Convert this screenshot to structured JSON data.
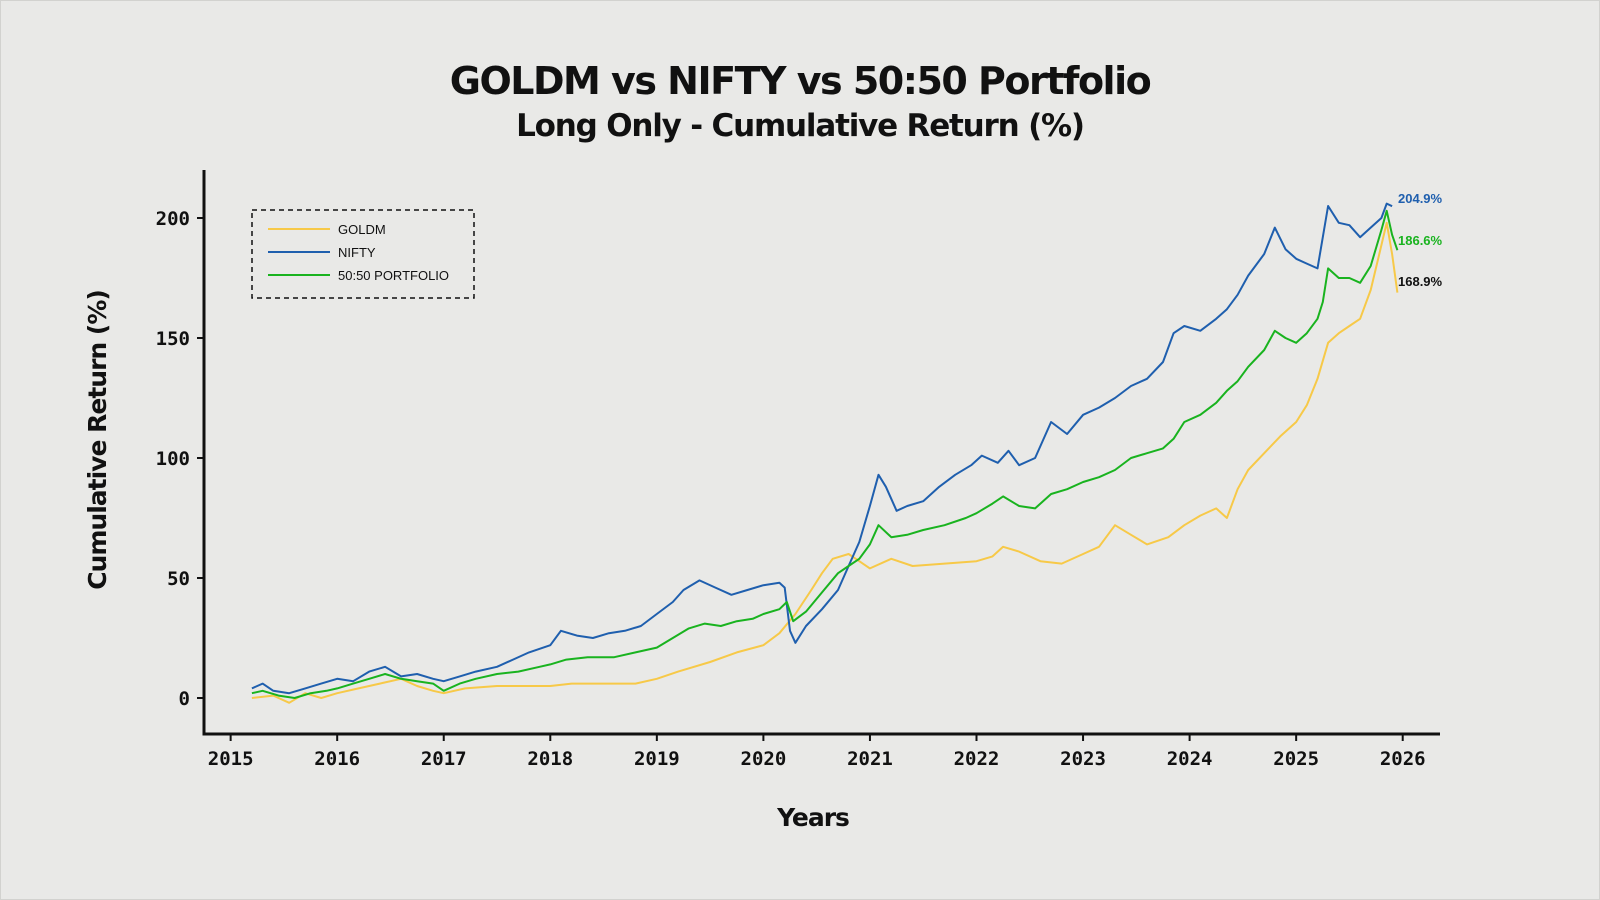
{
  "chart_data": {
    "type": "line",
    "title": "GOLDM vs NIFTY vs 50:50 Portfolio",
    "subtitle": "Long Only - Cumulative Return (%)",
    "xlabel": "Years",
    "ylabel": "Cumulative Return (%)",
    "xlim": [
      2014.75,
      2026.35
    ],
    "ylim": [
      -15,
      220
    ],
    "xticks": [
      2015,
      2016,
      2017,
      2018,
      2019,
      2020,
      2021,
      2022,
      2023,
      2024,
      2025,
      2026
    ],
    "xtick_labels": [
      "2015",
      "2016",
      "2017",
      "2018",
      "2019",
      "2020",
      "2021",
      "2022",
      "2023",
      "2024",
      "2025",
      "2026"
    ],
    "yticks": [
      0,
      50,
      100,
      150,
      200
    ],
    "ytick_labels": [
      "0",
      "50",
      "100",
      "150",
      "200"
    ],
    "legend_position": "top-left",
    "grid": false,
    "series": [
      {
        "name": "GOLDM",
        "color": "#f7c948",
        "end_label": "168.9%",
        "end_label_color": "#111111",
        "points": [
          [
            2015.2,
            0
          ],
          [
            2015.4,
            1
          ],
          [
            2015.55,
            -2
          ],
          [
            2015.7,
            2
          ],
          [
            2015.85,
            0
          ],
          [
            2016.0,
            2
          ],
          [
            2016.2,
            4
          ],
          [
            2016.4,
            6
          ],
          [
            2016.6,
            8
          ],
          [
            2016.75,
            5
          ],
          [
            2016.9,
            3
          ],
          [
            2017.0,
            2
          ],
          [
            2017.2,
            4
          ],
          [
            2017.5,
            5
          ],
          [
            2017.8,
            5
          ],
          [
            2018.0,
            5
          ],
          [
            2018.2,
            6
          ],
          [
            2018.5,
            6
          ],
          [
            2018.8,
            6
          ],
          [
            2019.0,
            8
          ],
          [
            2019.2,
            11
          ],
          [
            2019.5,
            15
          ],
          [
            2019.75,
            19
          ],
          [
            2020.0,
            22
          ],
          [
            2020.15,
            27
          ],
          [
            2020.3,
            35
          ],
          [
            2020.45,
            45
          ],
          [
            2020.55,
            52
          ],
          [
            2020.65,
            58
          ],
          [
            2020.8,
            60
          ],
          [
            2020.9,
            57
          ],
          [
            2021.0,
            54
          ],
          [
            2021.2,
            58
          ],
          [
            2021.4,
            55
          ],
          [
            2021.7,
            56
          ],
          [
            2022.0,
            57
          ],
          [
            2022.15,
            59
          ],
          [
            2022.25,
            63
          ],
          [
            2022.4,
            61
          ],
          [
            2022.6,
            57
          ],
          [
            2022.8,
            56
          ],
          [
            2023.0,
            60
          ],
          [
            2023.15,
            63
          ],
          [
            2023.3,
            72
          ],
          [
            2023.45,
            68
          ],
          [
            2023.6,
            64
          ],
          [
            2023.8,
            67
          ],
          [
            2023.95,
            72
          ],
          [
            2024.1,
            76
          ],
          [
            2024.25,
            79
          ],
          [
            2024.35,
            75
          ],
          [
            2024.45,
            87
          ],
          [
            2024.55,
            95
          ],
          [
            2024.7,
            102
          ],
          [
            2024.85,
            109
          ],
          [
            2025.0,
            115
          ],
          [
            2025.1,
            122
          ],
          [
            2025.2,
            133
          ],
          [
            2025.3,
            148
          ],
          [
            2025.4,
            152
          ],
          [
            2025.5,
            155
          ],
          [
            2025.6,
            158
          ],
          [
            2025.7,
            170
          ],
          [
            2025.78,
            185
          ],
          [
            2025.85,
            198
          ],
          [
            2025.9,
            185
          ],
          [
            2025.95,
            168.9
          ]
        ]
      },
      {
        "name": "NIFTY",
        "color": "#1f5fae",
        "end_label": "204.9%",
        "end_label_color": "#1f5fae",
        "points": [
          [
            2015.2,
            4
          ],
          [
            2015.3,
            6
          ],
          [
            2015.4,
            3
          ],
          [
            2015.55,
            2
          ],
          [
            2015.7,
            4
          ],
          [
            2015.85,
            6
          ],
          [
            2016.0,
            8
          ],
          [
            2016.15,
            7
          ],
          [
            2016.3,
            11
          ],
          [
            2016.45,
            13
          ],
          [
            2016.6,
            9
          ],
          [
            2016.75,
            10
          ],
          [
            2016.9,
            8
          ],
          [
            2017.0,
            7
          ],
          [
            2017.15,
            9
          ],
          [
            2017.3,
            11
          ],
          [
            2017.5,
            13
          ],
          [
            2017.65,
            16
          ],
          [
            2017.8,
            19
          ],
          [
            2018.0,
            22
          ],
          [
            2018.1,
            28
          ],
          [
            2018.25,
            26
          ],
          [
            2018.4,
            25
          ],
          [
            2018.55,
            27
          ],
          [
            2018.7,
            28
          ],
          [
            2018.85,
            30
          ],
          [
            2019.0,
            35
          ],
          [
            2019.15,
            40
          ],
          [
            2019.25,
            45
          ],
          [
            2019.4,
            49
          ],
          [
            2019.55,
            46
          ],
          [
            2019.7,
            43
          ],
          [
            2019.85,
            45
          ],
          [
            2020.0,
            47
          ],
          [
            2020.15,
            48
          ],
          [
            2020.2,
            46
          ],
          [
            2020.25,
            28
          ],
          [
            2020.3,
            23
          ],
          [
            2020.4,
            30
          ],
          [
            2020.55,
            37
          ],
          [
            2020.7,
            45
          ],
          [
            2020.8,
            55
          ],
          [
            2020.9,
            65
          ],
          [
            2021.0,
            80
          ],
          [
            2021.08,
            93
          ],
          [
            2021.15,
            88
          ],
          [
            2021.25,
            78
          ],
          [
            2021.35,
            80
          ],
          [
            2021.5,
            82
          ],
          [
            2021.65,
            88
          ],
          [
            2021.8,
            93
          ],
          [
            2021.95,
            97
          ],
          [
            2022.05,
            101
          ],
          [
            2022.2,
            98
          ],
          [
            2022.3,
            103
          ],
          [
            2022.4,
            97
          ],
          [
            2022.55,
            100
          ],
          [
            2022.7,
            115
          ],
          [
            2022.85,
            110
          ],
          [
            2023.0,
            118
          ],
          [
            2023.15,
            121
          ],
          [
            2023.3,
            125
          ],
          [
            2023.45,
            130
          ],
          [
            2023.6,
            133
          ],
          [
            2023.75,
            140
          ],
          [
            2023.85,
            152
          ],
          [
            2023.95,
            155
          ],
          [
            2024.1,
            153
          ],
          [
            2024.25,
            158
          ],
          [
            2024.35,
            162
          ],
          [
            2024.45,
            168
          ],
          [
            2024.55,
            176
          ],
          [
            2024.7,
            185
          ],
          [
            2024.8,
            196
          ],
          [
            2024.9,
            187
          ],
          [
            2025.0,
            183
          ],
          [
            2025.1,
            181
          ],
          [
            2025.2,
            179
          ],
          [
            2025.3,
            205
          ],
          [
            2025.4,
            198
          ],
          [
            2025.5,
            197
          ],
          [
            2025.6,
            192
          ],
          [
            2025.7,
            196
          ],
          [
            2025.8,
            200
          ],
          [
            2025.85,
            206
          ],
          [
            2025.9,
            204.9
          ]
        ]
      },
      {
        "name": "50:50 PORTFOLIO",
        "color": "#19b31f",
        "end_label": "186.6%",
        "end_label_color": "#19b31f",
        "points": [
          [
            2015.2,
            2
          ],
          [
            2015.3,
            3
          ],
          [
            2015.45,
            1
          ],
          [
            2015.6,
            0
          ],
          [
            2015.75,
            2
          ],
          [
            2015.9,
            3
          ],
          [
            2016.0,
            4
          ],
          [
            2016.15,
            6
          ],
          [
            2016.3,
            8
          ],
          [
            2016.45,
            10
          ],
          [
            2016.6,
            8
          ],
          [
            2016.75,
            7
          ],
          [
            2016.9,
            6
          ],
          [
            2017.0,
            3
          ],
          [
            2017.15,
            6
          ],
          [
            2017.3,
            8
          ],
          [
            2017.5,
            10
          ],
          [
            2017.7,
            11
          ],
          [
            2017.9,
            13
          ],
          [
            2018.0,
            14
          ],
          [
            2018.15,
            16
          ],
          [
            2018.35,
            17
          ],
          [
            2018.6,
            17
          ],
          [
            2018.8,
            19
          ],
          [
            2019.0,
            21
          ],
          [
            2019.15,
            25
          ],
          [
            2019.3,
            29
          ],
          [
            2019.45,
            31
          ],
          [
            2019.6,
            30
          ],
          [
            2019.75,
            32
          ],
          [
            2019.9,
            33
          ],
          [
            2020.0,
            35
          ],
          [
            2020.15,
            37
          ],
          [
            2020.22,
            40
          ],
          [
            2020.28,
            32
          ],
          [
            2020.4,
            36
          ],
          [
            2020.55,
            44
          ],
          [
            2020.7,
            52
          ],
          [
            2020.8,
            55
          ],
          [
            2020.9,
            58
          ],
          [
            2021.0,
            64
          ],
          [
            2021.08,
            72
          ],
          [
            2021.2,
            67
          ],
          [
            2021.35,
            68
          ],
          [
            2021.5,
            70
          ],
          [
            2021.7,
            72
          ],
          [
            2021.9,
            75
          ],
          [
            2022.0,
            77
          ],
          [
            2022.15,
            81
          ],
          [
            2022.25,
            84
          ],
          [
            2022.4,
            80
          ],
          [
            2022.55,
            79
          ],
          [
            2022.7,
            85
          ],
          [
            2022.85,
            87
          ],
          [
            2023.0,
            90
          ],
          [
            2023.15,
            92
          ],
          [
            2023.3,
            95
          ],
          [
            2023.45,
            100
          ],
          [
            2023.6,
            102
          ],
          [
            2023.75,
            104
          ],
          [
            2023.85,
            108
          ],
          [
            2023.95,
            115
          ],
          [
            2024.1,
            118
          ],
          [
            2024.25,
            123
          ],
          [
            2024.35,
            128
          ],
          [
            2024.45,
            132
          ],
          [
            2024.55,
            138
          ],
          [
            2024.7,
            145
          ],
          [
            2024.8,
            153
          ],
          [
            2024.9,
            150
          ],
          [
            2025.0,
            148
          ],
          [
            2025.1,
            152
          ],
          [
            2025.2,
            158
          ],
          [
            2025.25,
            165
          ],
          [
            2025.3,
            179
          ],
          [
            2025.4,
            175
          ],
          [
            2025.5,
            175
          ],
          [
            2025.6,
            173
          ],
          [
            2025.7,
            180
          ],
          [
            2025.8,
            195
          ],
          [
            2025.85,
            203
          ],
          [
            2025.9,
            193
          ],
          [
            2025.95,
            186.6
          ]
        ]
      }
    ]
  }
}
